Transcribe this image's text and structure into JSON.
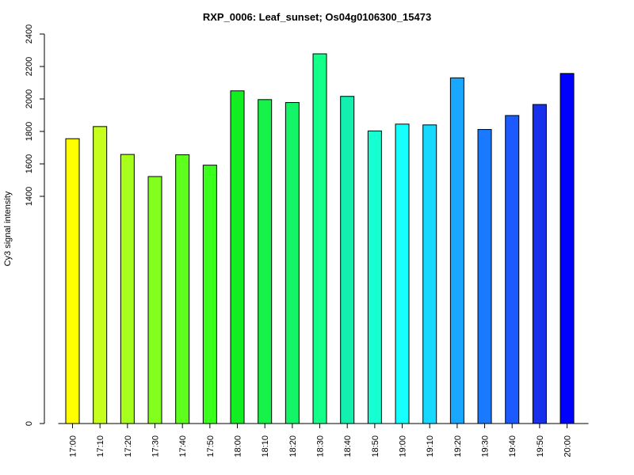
{
  "chart_data": {
    "type": "bar",
    "title": "RXP_0006: Leaf_sunset; Os04g0106300_15473",
    "xlabel": "",
    "ylabel": "Cy3 signal intensity",
    "y_ticks": [
      "0",
      "1400",
      "1600",
      "1800",
      "2000",
      "2200",
      "2400"
    ],
    "categories": [
      "17:00",
      "17:10",
      "17:20",
      "17:30",
      "17:40",
      "17:50",
      "18:00",
      "18:10",
      "18:20",
      "18:30",
      "18:40",
      "18:50",
      "19:00",
      "19:10",
      "19:20",
      "19:30",
      "19:40",
      "19:50",
      "20:00"
    ],
    "values": [
      1755,
      1830,
      1658,
      1522,
      1656,
      1592,
      2050,
      1996,
      1978,
      2278,
      2016,
      1803,
      1845,
      1840,
      2130,
      1812,
      1898,
      1966,
      2157
    ],
    "colors": [
      "#FFFF00",
      "#C6FF1B",
      "#A8FF1C",
      "#82FF1C",
      "#5EFF1C",
      "#3AFF1C",
      "#13EE22",
      "#16F248",
      "#13F466",
      "#13FF88",
      "#13EFAE",
      "#16FFD3",
      "#16FFFF",
      "#16D9FF",
      "#19A8FF",
      "#1979FF",
      "#1A5AFF",
      "#1630EC",
      "#0000FF"
    ],
    "grid": false,
    "legend": "none"
  }
}
